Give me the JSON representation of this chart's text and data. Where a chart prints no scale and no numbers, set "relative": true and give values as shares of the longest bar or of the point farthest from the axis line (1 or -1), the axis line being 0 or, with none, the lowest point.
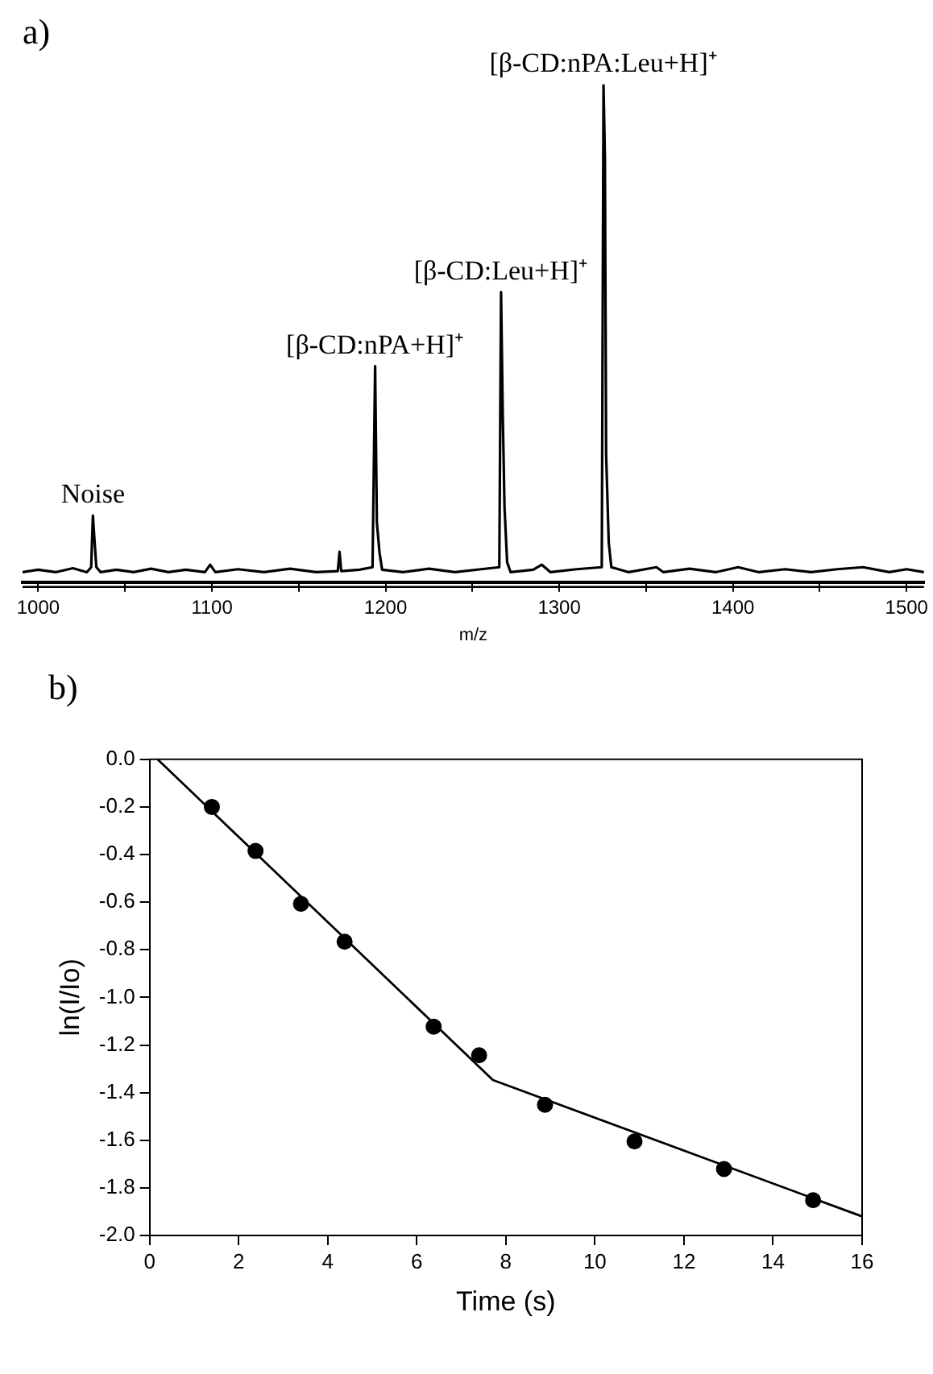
{
  "chart_data": [
    {
      "type": "line",
      "title": "a)",
      "xlabel": "m/z",
      "relative": true,
      "color": "#000000",
      "marker": "none",
      "grid": false,
      "legend": false,
      "x": [
        991,
        1000,
        1010,
        1020,
        1028,
        1030.5,
        1031.5,
        1032.5,
        1033.5,
        1036,
        1045,
        1055,
        1065,
        1075,
        1085,
        1096,
        1099,
        1102,
        1115,
        1130,
        1145,
        1160,
        1172.5,
        1173.5,
        1174.5,
        1185,
        1192.5,
        1194,
        1195,
        1196.5,
        1198,
        1210,
        1225,
        1240,
        1255,
        1265.5,
        1266.5,
        1267.5,
        1268.5,
        1270,
        1272,
        1285,
        1290,
        1295,
        1310,
        1324.5,
        1325.5,
        1326.3,
        1327,
        1328.5,
        1330,
        1340,
        1356,
        1360,
        1375,
        1390,
        1403,
        1415,
        1430,
        1445,
        1460,
        1475,
        1490,
        1500,
        1510
      ],
      "values": [
        0.02,
        0.025,
        0.02,
        0.028,
        0.02,
        0.03,
        0.134,
        0.08,
        0.03,
        0.02,
        0.025,
        0.02,
        0.027,
        0.02,
        0.025,
        0.02,
        0.035,
        0.02,
        0.026,
        0.02,
        0.027,
        0.02,
        0.022,
        0.061,
        0.022,
        0.025,
        0.03,
        0.434,
        0.12,
        0.06,
        0.025,
        0.02,
        0.027,
        0.02,
        0.026,
        0.03,
        0.583,
        0.334,
        0.15,
        0.04,
        0.02,
        0.025,
        0.035,
        0.02,
        0.026,
        0.03,
        1,
        0.852,
        0.257,
        0.08,
        0.03,
        0.02,
        0.03,
        0.02,
        0.027,
        0.02,
        0.03,
        0.02,
        0.026,
        0.02,
        0.026,
        0.03,
        0.02,
        0.026,
        0.02
      ],
      "xlim": [
        991,
        1510
      ],
      "xticks": [
        1000,
        {
          "value": 1050,
          "label": null
        },
        1100,
        {
          "value": 1150,
          "label": null
        },
        1200,
        {
          "value": 1250,
          "label": null
        },
        1300,
        {
          "value": 1350,
          "label": null
        },
        1400,
        {
          "value": 1450,
          "label": null
        },
        1500
      ],
      "annotations": [
        {
          "text": "Noise",
          "x": 1031.5,
          "y": 0.134
        },
        {
          "text": "[β-CD:nPA+H]⁺",
          "x": 1194,
          "y": 0.434
        },
        {
          "text": "[β-CD:Leu+H]⁺",
          "x": 1266.5,
          "y": 0.583
        },
        {
          "text": "[β-CD:nPA:Leu+H]⁺",
          "x": 1325.5,
          "y": 1
        }
      ]
    },
    {
      "type": "scatter",
      "title": "b)",
      "xlabel": "Time (s)",
      "ylabel": "ln(I/Io)",
      "grid": false,
      "legend": false,
      "series": [
        {
          "marker": "circle",
          "color": "#000000",
          "x": [
            1.4,
            2.38,
            3.4,
            4.38,
            6.38,
            7.4,
            8.88,
            10.89,
            12.9,
            14.9
          ],
          "values": [
            -0.2,
            -0.385,
            -0.607,
            -0.766,
            -1.123,
            -1.243,
            -1.451,
            -1.605,
            -1.721,
            -1.852
          ]
        },
        {
          "type": "line",
          "marker": "none",
          "color": "#000000",
          "x": [
            0.18,
            7.71,
            16
          ],
          "values": [
            0,
            -1.347,
            -1.92
          ]
        }
      ],
      "xlim": [
        0,
        16
      ],
      "ylim": [
        -2,
        0
      ],
      "xticks": [
        0,
        2,
        4,
        6,
        8,
        10,
        12,
        14,
        16
      ],
      "yticks": [
        {
          "value": 0,
          "label": "0.0"
        },
        {
          "value": -0.2,
          "label": "-0.2"
        },
        {
          "value": -0.4,
          "label": "-0.4"
        },
        {
          "value": -0.6,
          "label": "-0.6"
        },
        {
          "value": -0.8,
          "label": "-0.8"
        },
        {
          "value": -1,
          "label": "-1.0"
        },
        {
          "value": -1.2,
          "label": "-1.2"
        },
        {
          "value": -1.4,
          "label": "-1.4"
        },
        {
          "value": -1.6,
          "label": "-1.6"
        },
        {
          "value": -1.8,
          "label": "-1.8"
        },
        {
          "value": -2,
          "label": "-2.0"
        }
      ]
    }
  ]
}
